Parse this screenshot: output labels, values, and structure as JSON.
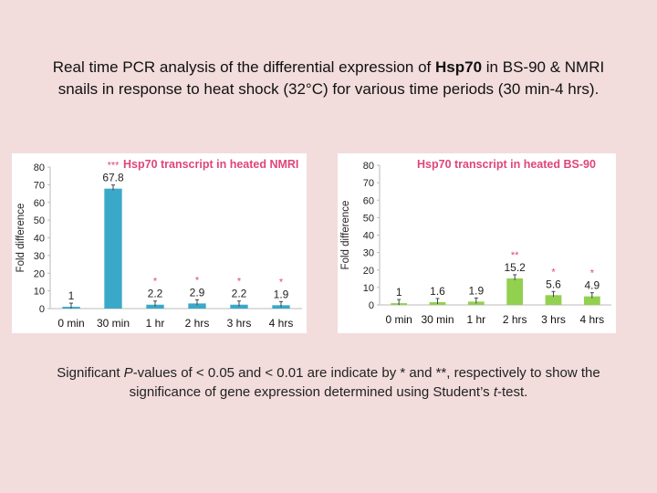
{
  "slide": {
    "title_line1_pre": "Real time PCR analysis of the differential expression of ",
    "title_line1_bold": "Hsp70",
    "title_line1_post": " in BS-90 & NMRI",
    "title_line2": "snails in response to heat shock (32°C) for various time periods (30 min-4 hrs).",
    "caption_line1_pre": "Significant ",
    "caption_line1_italic": "P",
    "caption_line1_post": "-values of < 0.05 and < 0.01 are indicate by * and **, respectively to show the",
    "caption_line2_pre": "significance of gene expression determined using Student’s ",
    "caption_line2_italic": "t",
    "caption_line2_post": "-test."
  },
  "colors": {
    "background": "#f2dcdc",
    "nmri_bar": "#3aa9c9",
    "bs90_bar": "#92d050",
    "title_text": "#e0457b",
    "significance": "#e0457b"
  },
  "chart_data": [
    {
      "type": "bar",
      "title": "Hsp70 transcript in heated NMRI",
      "ylabel": "Fold difference",
      "xlabel": "",
      "categories": [
        "0 min",
        "30 min",
        "1 hr",
        "2 hrs",
        "3 hrs",
        "4 hrs"
      ],
      "values": [
        1,
        67.8,
        2.2,
        2.9,
        2.2,
        1.9
      ],
      "value_labels": [
        "1",
        "67.8",
        "2.2",
        "2.9",
        "2.2",
        "1.9"
      ],
      "significance": [
        "",
        "***",
        "*",
        "*",
        "*",
        "*"
      ],
      "ylim": [
        0,
        80
      ],
      "yticks": [
        "0",
        "10",
        "20",
        "30",
        "40",
        "50",
        "60",
        "70",
        "80"
      ],
      "grid": false,
      "bar_color": "#3aa9c9"
    },
    {
      "type": "bar",
      "title": "Hsp70 transcript in heated BS-90",
      "ylabel": "Fold difference",
      "xlabel": "",
      "categories": [
        "0 min",
        "30 min",
        "1 hr",
        "2 hrs",
        "3 hrs",
        "4 hrs"
      ],
      "values": [
        1,
        1.6,
        1.9,
        15.2,
        5.6,
        4.9
      ],
      "value_labels": [
        "1",
        "1.6",
        "1.9",
        "15.2",
        "5.6",
        "4.9"
      ],
      "significance": [
        "",
        "",
        "",
        "**",
        "*",
        "*"
      ],
      "ylim": [
        0,
        80
      ],
      "yticks": [
        "0",
        "10",
        "20",
        "30",
        "40",
        "50",
        "60",
        "70",
        "80"
      ],
      "grid": false,
      "bar_color": "#92d050"
    }
  ]
}
